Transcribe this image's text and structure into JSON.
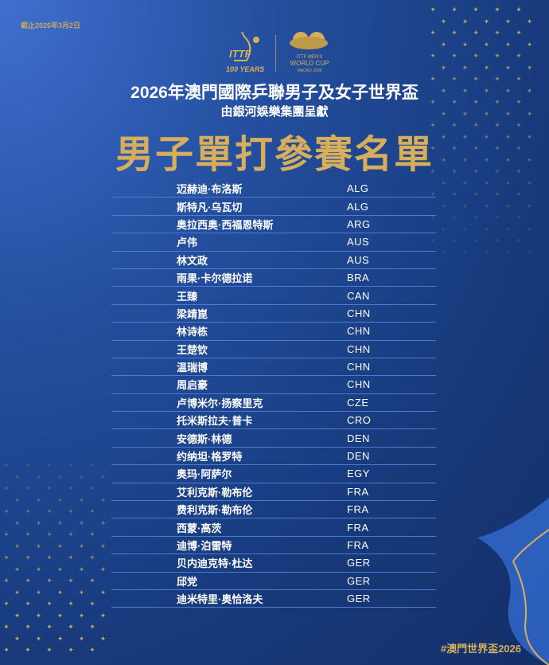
{
  "header": {
    "cutoff_date": "截止2026年3月2日",
    "logo_itf": "ITTF 100 YEARS",
    "logo_worldcup": "ITTF MEN'S WORLD CUP MACAO 2026",
    "title_event": "2026年澳門國際乒聯男子及女子世界盃",
    "title_presenter": "由銀河娛樂集團呈獻",
    "title_list": "男子單打參賽名單"
  },
  "players": [
    {
      "name": "迈赫迪·布洛斯",
      "country": "ALG"
    },
    {
      "name": "斯特凡·乌瓦切",
      "country": "ALG"
    },
    {
      "name": "奥拉西奥·西福恩特斯",
      "country": "ARG"
    },
    {
      "name": "卢伟",
      "country": "AUS"
    },
    {
      "name": "林文政",
      "country": "AUS"
    },
    {
      "name": "雨果·卡尔德拉诺",
      "country": "BRA"
    },
    {
      "name": "王臻",
      "country": "CAN"
    },
    {
      "name": "梁靖崑",
      "country": "CHN"
    },
    {
      "name": "林诗栋",
      "country": "CHN"
    },
    {
      "name": "王楚钦",
      "country": "CHN"
    },
    {
      "name": "温瑞博",
      "country": "CHN"
    },
    {
      "name": "周启豪",
      "country": "CHN"
    },
    {
      "name": "卢博米尔·扬察里克",
      "country": "CZE"
    },
    {
      "name": "托米斯拉夫·普卡",
      "country": "CRO"
    },
    {
      "name": "安德斯·林德",
      "country": "DEN"
    },
    {
      "name": "约纳坦·格罗特",
      "country": "DEN"
    },
    {
      "name": "奥玛·阿萨尔",
      "country": "EGY"
    },
    {
      "name": "艾利克斯·勒布伦",
      "country": "FRA"
    },
    {
      "name": "费利克斯·勒布伦",
      "country": "FRA"
    },
    {
      "name": "西蒙·高茨",
      "country": "FRA"
    },
    {
      "name": "迪博·泊雷特",
      "country": "FRA"
    },
    {
      "name": "贝内迪克特·杜达",
      "country": "GER"
    },
    {
      "name": "邱党",
      "country": "GER"
    },
    {
      "name": "迪米特里·奥恰洛夫",
      "country": "GER"
    }
  ],
  "footer": {
    "hashtag": "#澳門世界盃2026"
  },
  "colors": {
    "gold": "#d6ae5c",
    "background": "#173a7c",
    "row_line": "#4d7bd1"
  }
}
